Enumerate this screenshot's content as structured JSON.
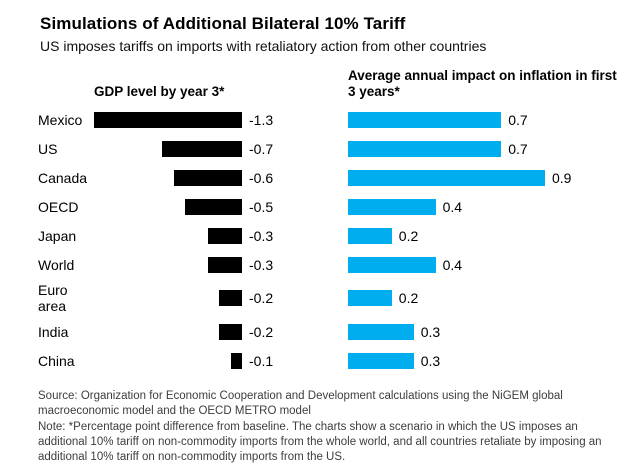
{
  "title": "Simulations of Additional Bilateral 10% Tariff",
  "subtitle": "US imposes tariffs on imports with retaliatory action from other countries",
  "headers": {
    "left": "GDP level by year 3*",
    "right": "Average annual impact on inflation in first 3 years*"
  },
  "colors": {
    "gdp_bar": "#000000",
    "inflation_bar": "#00aeef"
  },
  "chart_data": {
    "type": "bar",
    "orientation": "horizontal",
    "categories": [
      "Mexico",
      "US",
      "Canada",
      "OECD",
      "Japan",
      "World",
      "Euro area",
      "India",
      "China"
    ],
    "series": [
      {
        "name": "GDP level by year 3*",
        "values": [
          -1.3,
          -0.7,
          -0.6,
          -0.5,
          -0.3,
          -0.3,
          -0.2,
          -0.2,
          -0.1
        ],
        "color": "#000000",
        "value_labels": [
          "-1.3",
          "-0.7",
          "-0.6",
          "-0.5",
          "-0.3",
          "-0.3",
          "-0.2",
          "-0.2",
          "-0.1"
        ]
      },
      {
        "name": "Average annual impact on inflation in first 3 years*",
        "values": [
          0.7,
          0.7,
          0.9,
          0.4,
          0.2,
          0.4,
          0.2,
          0.3,
          0.3
        ],
        "color": "#00aeef",
        "value_labels": [
          "0.7",
          "0.7",
          "0.9",
          "0.4",
          "0.2",
          "0.4",
          "0.2",
          "0.3",
          "0.3"
        ]
      }
    ],
    "title": "Simulations of Additional Bilateral 10% Tariff",
    "xlabel": "",
    "ylabel": "",
    "grid": false,
    "legend_position": "none"
  },
  "footer": {
    "source": "Source: Organization for Economic Cooperation and Development calculations using the NiGEM global macroeconomic model and the OECD METRO model",
    "note": "Note: *Percentage point difference from baseline. The charts show a scenario in which the US imposes an additional 10% tariff on non-commodity imports from the whole world, and all countries retaliate by imposing an additional 10% tariff on non-commodity imports from the US."
  }
}
